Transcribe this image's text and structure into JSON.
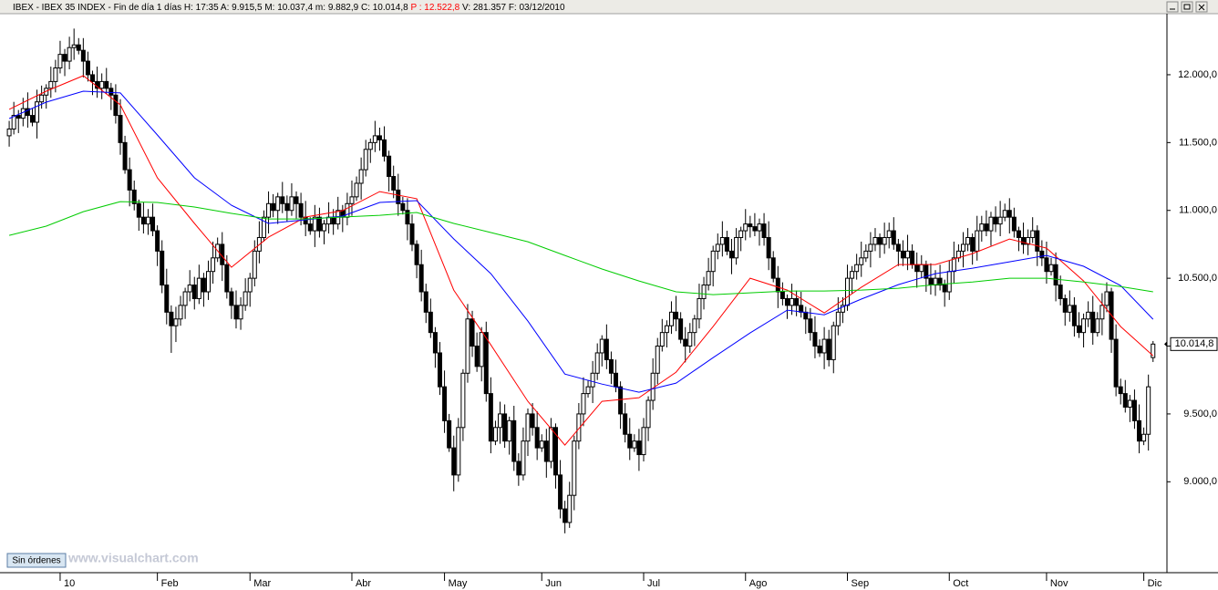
{
  "header": {
    "title": "IBEX - IBEX 35 INDEX - Fin de día 1 días",
    "fields": [
      {
        "label": "H:",
        "value": "17:35",
        "color": "#000000"
      },
      {
        "label": "A:",
        "value": "9.915,5",
        "color": "#000000"
      },
      {
        "label": "M:",
        "value": "10.037,4",
        "color": "#000000"
      },
      {
        "label": "m:",
        "value": "9.882,9",
        "color": "#000000"
      },
      {
        "label": "C:",
        "value": "10.014,8",
        "color": "#000000"
      },
      {
        "label": "P :",
        "value": "12.522,8",
        "color": "#ff0000"
      },
      {
        "label": "V:",
        "value": "281.357",
        "color": "#000000"
      },
      {
        "label": "F:",
        "value": "03/12/2010",
        "color": "#000000"
      }
    ]
  },
  "footer": {
    "status": "Sin órdenes",
    "watermark": "www.visualchart.com"
  },
  "chart_data": {
    "type": "candlestick",
    "up_color": "#ffffff",
    "down_color": "#000000",
    "xlim": [
      -1,
      250
    ],
    "xticks": [
      {
        "value": 11,
        "label": "10"
      },
      {
        "value": 32,
        "label": "Feb"
      },
      {
        "value": 52,
        "label": "Mar"
      },
      {
        "value": 74,
        "label": "Abr"
      },
      {
        "value": 94,
        "label": "May"
      },
      {
        "value": 115,
        "label": "Jun"
      },
      {
        "value": 137,
        "label": "Jul"
      },
      {
        "value": 159,
        "label": "Ago"
      },
      {
        "value": 181,
        "label": "Sep"
      },
      {
        "value": 203,
        "label": "Oct"
      },
      {
        "value": 224,
        "label": "Nov"
      },
      {
        "value": 245,
        "label": "Dic"
      }
    ],
    "ylim": [
      8330,
      12450
    ],
    "yticks": [
      {
        "value": 9000,
        "label": "9.000,0"
      },
      {
        "value": 9500,
        "label": "9.500,0"
      },
      {
        "value": 10000,
        "label": "10.000,0"
      },
      {
        "value": 10500,
        "label": "10.500,0"
      },
      {
        "value": 11000,
        "label": "11.000,0"
      },
      {
        "value": 11500,
        "label": "11.500,0"
      },
      {
        "value": 12000,
        "label": "12.000,0"
      }
    ],
    "last_label": {
      "value": 10014.8,
      "label": "10.014,8"
    },
    "open": [
      11550,
      11600,
      11700,
      11680,
      11750,
      11700,
      11650,
      11800,
      11850,
      11900,
      11950,
      12050,
      12150,
      12100,
      12200,
      12220,
      12180,
      12100,
      12000,
      11950,
      11900,
      11950,
      11900,
      11850,
      11700,
      11500,
      11300,
      11150,
      11050,
      10950,
      10900,
      10950,
      10850,
      10700,
      10450,
      10250,
      10150,
      10200,
      10300,
      10400,
      10450,
      10350,
      10500,
      10400,
      10550,
      10650,
      10750,
      10600,
      10400,
      10300,
      10200,
      10300,
      10400,
      10500,
      10700,
      10800,
      10950,
      11050,
      11000,
      11100,
      11050,
      11000,
      11100,
      11050,
      10950,
      10900,
      10850,
      10950,
      10850,
      10900,
      10950,
      10900,
      11000,
      10950,
      11050,
      11100,
      11200,
      11300,
      11450,
      11500,
      11550,
      11520,
      11400,
      11250,
      11150,
      11050,
      11000,
      10900,
      10750,
      10600,
      10400,
      10250,
      10100,
      9950,
      9700,
      9450,
      9250,
      9050,
      9400,
      9800,
      10200,
      10000,
      9850,
      10100,
      9650,
      9300,
      9400,
      9500,
      9300,
      9450,
      9150,
      9050,
      9300,
      9500,
      9400,
      9250,
      9300,
      9150,
      9400,
      9050,
      8800,
      8700,
      8900,
      9300,
      9500,
      9650,
      9700,
      9800,
      9950,
      10050,
      9900,
      9800,
      9700,
      9500,
      9350,
      9250,
      9300,
      9200,
      9400,
      9600,
      9800,
      10000,
      10100,
      10150,
      10250,
      10200,
      10050,
      10000,
      10100,
      10200,
      10350,
      10450,
      10550,
      10700,
      10750,
      10800,
      10700,
      10650,
      10800,
      10850,
      10900,
      10880,
      10850,
      10900,
      10800,
      10650,
      10500,
      10400,
      10350,
      10300,
      10350,
      10300,
      10250,
      10200,
      10100,
      10000,
      9950,
      10050,
      9900,
      10150,
      10250,
      10300,
      10500,
      10550,
      10600,
      10650,
      10700,
      10750,
      10800,
      10750,
      10800,
      10850,
      10750,
      10700,
      10650,
      10700,
      10600,
      10550,
      10600,
      10500,
      10450,
      10500,
      10450,
      10400,
      10550,
      10650,
      10700,
      10750,
      10800,
      10700,
      10850,
      10900,
      10850,
      10950,
      10900,
      10950,
      11000,
      10950,
      10850,
      10800,
      10750,
      10800,
      10850,
      10700,
      10650,
      10550,
      10600,
      10450,
      10350,
      10250,
      10300,
      10150,
      10100,
      10200,
      10250,
      10100,
      10200,
      10300,
      10400,
      10050,
      9700,
      9650,
      9550,
      9600,
      9450,
      9300,
      9350,
      9915.5
    ],
    "high": [
      11660,
      11800,
      11740,
      11830,
      11870,
      11750,
      11890,
      11920,
      11930,
      12060,
      12110,
      12250,
      12190,
      12280,
      12340,
      12270,
      12270,
      12170,
      12030,
      12060,
      12010,
      12050,
      11940,
      11930,
      11820,
      11550,
      11390,
      11220,
      11080,
      11060,
      11010,
      11050,
      10890,
      10780,
      10570,
      10300,
      10290,
      10370,
      10430,
      10560,
      10510,
      10600,
      10540,
      10630,
      10770,
      10800,
      10840,
      10670,
      10430,
      10410,
      10360,
      10500,
      10540,
      10780,
      10920,
      11000,
      11140,
      11120,
      11130,
      11210,
      11110,
      11200,
      11140,
      11130,
      11070,
      10950,
      11040,
      11020,
      10930,
      11060,
      11010,
      11100,
      11040,
      11130,
      11220,
      11250,
      11390,
      11520,
      11530,
      11660,
      11610,
      11620,
      11440,
      11330,
      11270,
      11100,
      11090,
      10970,
      10780,
      10710,
      10460,
      10350,
      10140,
      10030,
      9820,
      9500,
      9340,
      9470,
      9830,
      10310,
      10260,
      10100,
      10140,
      10180,
      9770,
      9450,
      9590,
      9570,
      9480,
      9560,
      9210,
      9400,
      9540,
      9580,
      9520,
      9350,
      9390,
      9470,
      9430,
      9160,
      8860,
      9000,
      9340,
      9580,
      9770,
      9750,
      9890,
      10020,
      10080,
      10160,
      9960,
      9900,
      9740,
      9580,
      9470,
      9350,
      9390,
      9470,
      9630,
      9910,
      10060,
      10200,
      10190,
      10330,
      10370,
      10250,
      10140,
      10170,
      10230,
      10460,
      10510,
      10650,
      10740,
      10830,
      10920,
      10850,
      10790,
      10870,
      10880,
      11010,
      10960,
      10980,
      10940,
      10980,
      10920,
      10700,
      10590,
      10470,
      10380,
      10460,
      10410,
      10400,
      10290,
      10280,
      10220,
      10050,
      10140,
      10120,
      10180,
      10360,
      10360,
      10600,
      10590,
      10680,
      10770,
      10750,
      10840,
      10870,
      10830,
      10910,
      10910,
      10950,
      10790,
      10780,
      10820,
      10750,
      10690,
      10670,
      10630,
      10610,
      10560,
      10600,
      10490,
      10630,
      10770,
      10750,
      10840,
      10870,
      10830,
      10960,
      10960,
      11000,
      10990,
      11030,
      11070,
      11050,
      11090,
      11020,
      10880,
      10910,
      10860,
      10950,
      10890,
      10780,
      10770,
      10650,
      10690,
      10520,
      10380,
      10410,
      10360,
      10250,
      10240,
      10330,
      10370,
      10250,
      10390,
      10470,
      10430,
      10160,
      9760,
      9750,
      9640,
      9680,
      9570,
      9400,
      9790,
      10037.4
    ],
    "low": [
      11470,
      11560,
      11570,
      11620,
      11610,
      11620,
      11530,
      11750,
      11750,
      11830,
      11870,
      12010,
      11990,
      12040,
      12110,
      12150,
      11980,
      11950,
      11850,
      11830,
      11820,
      11860,
      11740,
      11640,
      11410,
      11270,
      11030,
      11000,
      10850,
      10830,
      10820,
      10810,
      10590,
      10390,
      10160,
      9950,
      10030,
      10150,
      10200,
      10330,
      10270,
      10310,
      10290,
      10340,
      10460,
      10620,
      10480,
      10350,
      10200,
      10130,
      10120,
      10260,
      10290,
      10440,
      10610,
      10770,
      10830,
      10950,
      10900,
      10980,
      10920,
      10960,
      10940,
      10890,
      10810,
      10820,
      10730,
      10800,
      10750,
      10830,
      10820,
      10860,
      10840,
      10890,
      10960,
      11070,
      11080,
      11250,
      11350,
      11430,
      11440,
      11360,
      11140,
      11090,
      10960,
      10970,
      10780,
      10700,
      10500,
      10330,
      10170,
      10060,
      9840,
      9640,
      9360,
      9220,
      8930,
      9000,
      9300,
      9730,
      9920,
      9810,
      9740,
      9590,
      9210,
      9270,
      9280,
      9250,
      9200,
      9080,
      8970,
      9010,
      9190,
      9340,
      9160,
      9220,
      9030,
      9100,
      8950,
      8730,
      8620,
      8660,
      8790,
      9240,
      9410,
      9620,
      9580,
      9750,
      9850,
      9830,
      9720,
      9660,
      9390,
      9290,
      9160,
      9220,
      9080,
      9150,
      9300,
      9530,
      9720,
      9960,
      9990,
      10090,
      10110,
      10020,
      9880,
      9950,
      10000,
      10130,
      10270,
      10410,
      10440,
      10640,
      10660,
      10670,
      10530,
      10600,
      10700,
      10780,
      10800,
      10810,
      10740,
      10740,
      10560,
      10470,
      10280,
      10300,
      10200,
      10230,
      10220,
      10210,
      10090,
      10040,
      9910,
      9920,
      9830,
      9850,
      9800,
      10080,
      10170,
      10260,
      10390,
      10490,
      10510,
      10620,
      10580,
      10700,
      10650,
      10680,
      10720,
      10710,
      10590,
      10590,
      10560,
      10570,
      10430,
      10500,
      10400,
      10380,
      10370,
      10410,
      10290,
      10340,
      10460,
      10620,
      10580,
      10700,
      10600,
      10630,
      10770,
      10810,
      10740,
      10840,
      10810,
      10920,
      10830,
      10800,
      10700,
      10680,
      10670,
      10760,
      10590,
      10590,
      10460,
      10520,
      10330,
      10300,
      10150,
      10180,
      10070,
      10060,
      9990,
      10140,
      10010,
      10070,
      10080,
      10250,
      9950,
      9630,
      9570,
      9510,
      9440,
      9390,
      9210,
      9270,
      9230,
      9882.9
    ],
    "close": [
      11600,
      11700,
      11680,
      11750,
      11700,
      11650,
      11800,
      11850,
      11900,
      11950,
      12050,
      12150,
      12100,
      12200,
      12220,
      12180,
      12100,
      12000,
      11950,
      11900,
      11950,
      11900,
      11850,
      11700,
      11500,
      11300,
      11150,
      11050,
      10950,
      10900,
      10950,
      10850,
      10700,
      10450,
      10250,
      10150,
      10200,
      10300,
      10400,
      10450,
      10350,
      10500,
      10400,
      10550,
      10650,
      10750,
      10600,
      10400,
      10300,
      10200,
      10300,
      10400,
      10500,
      10700,
      10800,
      10950,
      11050,
      11000,
      11100,
      11050,
      11000,
      11100,
      11050,
      10950,
      10900,
      10850,
      10950,
      10850,
      10900,
      10950,
      10900,
      11000,
      10950,
      11050,
      11100,
      11200,
      11300,
      11450,
      11500,
      11550,
      11520,
      11400,
      11250,
      11150,
      11050,
      11000,
      10900,
      10750,
      10600,
      10400,
      10250,
      10100,
      9950,
      9700,
      9450,
      9250,
      9050,
      9400,
      9800,
      10200,
      10000,
      9850,
      10100,
      9650,
      9300,
      9400,
      9500,
      9300,
      9450,
      9150,
      9050,
      9300,
      9500,
      9400,
      9250,
      9300,
      9150,
      9400,
      9050,
      8800,
      8700,
      8900,
      9300,
      9500,
      9650,
      9700,
      9800,
      9950,
      10050,
      9900,
      9800,
      9700,
      9500,
      9350,
      9250,
      9300,
      9200,
      9400,
      9600,
      9800,
      10000,
      10100,
      10150,
      10250,
      10200,
      10050,
      10000,
      10100,
      10200,
      10350,
      10450,
      10550,
      10700,
      10750,
      10800,
      10700,
      10650,
      10800,
      10850,
      10900,
      10880,
      10850,
      10900,
      10800,
      10650,
      10500,
      10400,
      10350,
      10300,
      10350,
      10300,
      10250,
      10200,
      10100,
      10000,
      9950,
      10050,
      9900,
      10150,
      10250,
      10300,
      10500,
      10550,
      10600,
      10650,
      10700,
      10750,
      10800,
      10750,
      10800,
      10850,
      10750,
      10700,
      10650,
      10700,
      10600,
      10550,
      10600,
      10500,
      10450,
      10500,
      10450,
      10400,
      10550,
      10650,
      10700,
      10750,
      10800,
      10700,
      10850,
      10900,
      10850,
      10950,
      10900,
      10950,
      11000,
      10950,
      10850,
      10800,
      10750,
      10800,
      10850,
      10700,
      10650,
      10550,
      10600,
      10450,
      10350,
      10250,
      10300,
      10150,
      10100,
      10200,
      10250,
      10100,
      10200,
      10300,
      10400,
      10050,
      9700,
      9650,
      9550,
      9600,
      9450,
      9300,
      9350,
      9700,
      10014.8
    ],
    "moving_averages": [
      {
        "color": "#ff0000",
        "x": [
          0,
          8,
          16,
          24,
          32,
          40,
          48,
          56,
          64,
          72,
          80,
          88,
          96,
          104,
          112,
          120,
          128,
          136,
          144,
          152,
          160,
          168,
          176,
          184,
          192,
          200,
          208,
          216,
          224,
          232,
          240,
          247
        ],
        "values": [
          11745,
          11879,
          11993,
          11778,
          11240,
          10904,
          10581,
          10803,
          10951,
          10998,
          11139,
          11086,
          10413,
          10009,
          9593,
          9270,
          9593,
          9620,
          9808,
          10144,
          10500,
          10413,
          10245,
          10433,
          10601,
          10601,
          10682,
          10789,
          10722,
          10480,
          10144,
          9929
        ]
      },
      {
        "color": "#0000ff",
        "x": [
          0,
          8,
          16,
          24,
          32,
          40,
          48,
          56,
          64,
          72,
          80,
          88,
          96,
          104,
          112,
          120,
          128,
          136,
          144,
          152,
          160,
          168,
          176,
          184,
          192,
          200,
          208,
          216,
          224,
          232,
          240,
          247
        ],
        "values": [
          11677,
          11798,
          11879,
          11866,
          11556,
          11240,
          11038,
          10904,
          10931,
          10958,
          11059,
          11072,
          10790,
          10534,
          10184,
          9794,
          9720,
          9660,
          9727,
          9915,
          10097,
          10265,
          10231,
          10346,
          10453,
          10534,
          10574,
          10621,
          10668,
          10588,
          10446,
          10198
        ]
      },
      {
        "color": "#00cc00",
        "x": [
          0,
          8,
          16,
          24,
          32,
          40,
          48,
          56,
          64,
          72,
          80,
          88,
          96,
          104,
          112,
          120,
          128,
          136,
          144,
          152,
          160,
          168,
          176,
          184,
          192,
          200,
          208,
          216,
          224,
          232,
          240,
          247
        ],
        "values": [
          10816,
          10884,
          10991,
          11065,
          11059,
          11025,
          10978,
          10937,
          10937,
          10951,
          10964,
          10985,
          10904,
          10837,
          10769,
          10668,
          10568,
          10480,
          10400,
          10379,
          10393,
          10406,
          10406,
          10413,
          10426,
          10453,
          10473,
          10500,
          10500,
          10473,
          10439,
          10400
        ]
      }
    ]
  }
}
